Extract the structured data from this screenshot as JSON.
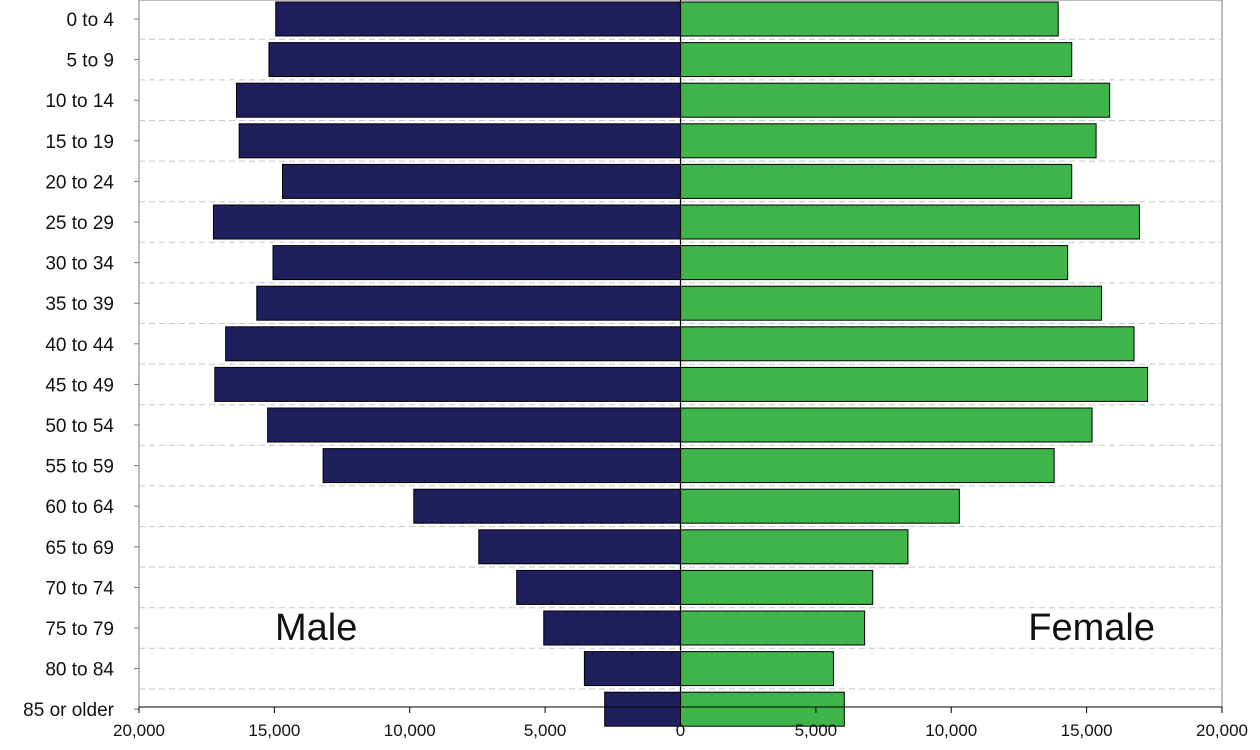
{
  "chart_data": {
    "type": "bar",
    "orientation": "horizontal",
    "layout": "population-pyramid",
    "categories": [
      "0 to 4",
      "5 to 9",
      "10 to 14",
      "15 to 19",
      "20 to 24",
      "25 to 29",
      "30 to 34",
      "35 to 39",
      "40 to 44",
      "45 to 49",
      "50 to 54",
      "55 to 59",
      "60 to 64",
      "65 to 69",
      "70 to 74",
      "75 to 79",
      "80 to 84",
      "85  or older"
    ],
    "series": [
      {
        "name": "Male",
        "side": "left",
        "color": "#1f1f5e",
        "values": [
          14950,
          15200,
          16400,
          16300,
          14700,
          17250,
          15050,
          15650,
          16800,
          17200,
          15250,
          13200,
          9850,
          7450,
          6050,
          5050,
          3550,
          2800
        ]
      },
      {
        "name": "Female",
        "side": "right",
        "color": "#3fb44a",
        "values": [
          13950,
          14450,
          15850,
          15350,
          14450,
          16950,
          14300,
          15550,
          16750,
          17250,
          15200,
          13800,
          10300,
          8400,
          7100,
          6800,
          5650,
          6050
        ]
      }
    ],
    "x_ticks": [
      "20,000",
      "15,000",
      "10,000",
      "5,000",
      "0",
      "5,000",
      "10,000",
      "15,000",
      "20,000"
    ],
    "xlim": [
      -20000,
      20000
    ],
    "grid": "horizontal dashed",
    "title": "",
    "xlabel": "",
    "ylabel": ""
  }
}
